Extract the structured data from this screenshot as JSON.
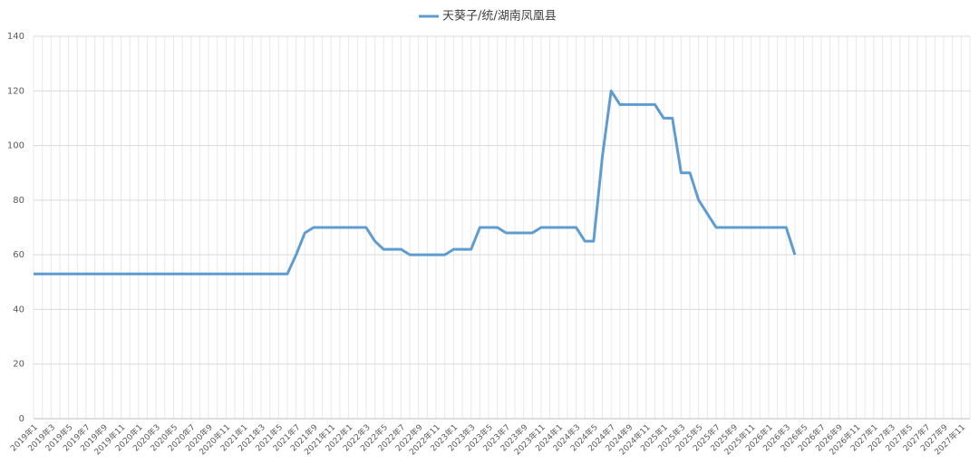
{
  "chart_data": {
    "type": "line",
    "categories": [
      "2019年1",
      null,
      "2019年3",
      null,
      "2019年5",
      null,
      "2019年7",
      null,
      "2019年9",
      null,
      "2019年11",
      null,
      "2020年1",
      null,
      "2020年3",
      null,
      "2020年5",
      null,
      "2020年7",
      null,
      "2020年9",
      null,
      "2020年11",
      null,
      "2021年1",
      null,
      "2021年3",
      null,
      "2021年5",
      null,
      "2021年7",
      null,
      "2021年9",
      null,
      "2021年11",
      null,
      "2022年1",
      null,
      "2022年3",
      null,
      "2022年5",
      null,
      "2022年7",
      null,
      "2022年9",
      null,
      "2022年11",
      null,
      "2023年1",
      null,
      "2023年3",
      null,
      "2023年5",
      null,
      "2023年7",
      null,
      "2023年9",
      null,
      "2023年11",
      null,
      "2024年1",
      null,
      "2024年3",
      null,
      "2024年5",
      null,
      "2024年7",
      null,
      "2024年9",
      null,
      "2024年11",
      null,
      "2025年1",
      null,
      "2025年3",
      null,
      "2025年5",
      null,
      "2025年7",
      null,
      "2025年9",
      null,
      "2025年11",
      null,
      "2026年1",
      null,
      "2026年3",
      null,
      "2026年5",
      null,
      "2026年7",
      null,
      "2026年9",
      null,
      "2026年11",
      null,
      "2027年1",
      null,
      "2027年3",
      null,
      "2027年5",
      null,
      "2027年7",
      null,
      "2027年9",
      null,
      "2027年11",
      null
    ],
    "series": [
      {
        "name": "天葵子/统/湖南凤凰县",
        "color": "#5f9ccf",
        "values": [
          53,
          53,
          53,
          53,
          53,
          53,
          53,
          53,
          53,
          53,
          53,
          53,
          53,
          53,
          53,
          53,
          53,
          53,
          53,
          53,
          53,
          53,
          53,
          53,
          53,
          53,
          53,
          53,
          53,
          53,
          60,
          68,
          70,
          70,
          70,
          70,
          70,
          70,
          70,
          65,
          62,
          62,
          62,
          60,
          60,
          60,
          60,
          60,
          62,
          62,
          62,
          70,
          70,
          70,
          68,
          68,
          68,
          68,
          70,
          70,
          70,
          70,
          70,
          65,
          65,
          96,
          120,
          115,
          115,
          115,
          115,
          115,
          110,
          110,
          90,
          90,
          80,
          75,
          70,
          70,
          70,
          70,
          70,
          70,
          70,
          70,
          70,
          60,
          null,
          null,
          null,
          null,
          null,
          null,
          null,
          null,
          null,
          null,
          null,
          null,
          null,
          null,
          null,
          null,
          null,
          null,
          null,
          null
        ]
      }
    ],
    "ylim": [
      0,
      140
    ],
    "yticks": [
      0,
      20,
      40,
      60,
      80,
      100,
      120,
      140
    ],
    "grid": true,
    "legend": "top"
  }
}
